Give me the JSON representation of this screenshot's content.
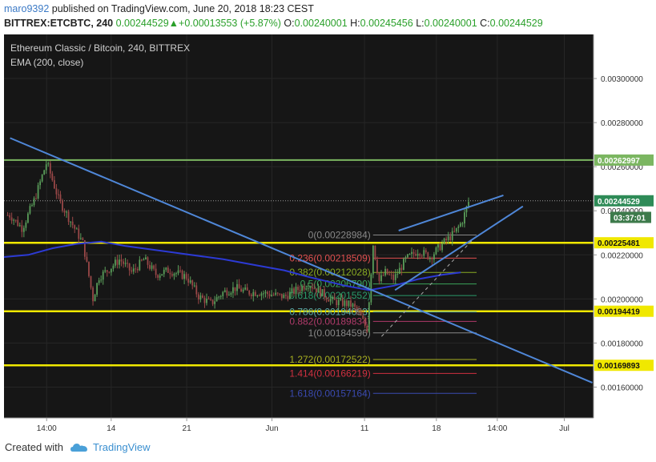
{
  "header": {
    "author": "maro9392",
    "published_text": "published on TradingView.com, June 20, 2018 18:23 CEST",
    "symbol": "BITTREX:ETCBTC, 240",
    "last": "0.00244529",
    "change_arrow": "▲",
    "change": "+0.00013553 (+5.87%)",
    "o_label": "O:",
    "o": "0.00240001",
    "h_label": "H:",
    "h": "0.00245456",
    "l_label": "L:",
    "l": "0.00240001",
    "c_label": "C:",
    "c": "0.00244529"
  },
  "legend": {
    "title": "Ethereum Classic / Bitcoin, 240, BITTREX",
    "indicator": "EMA (200, close)"
  },
  "footer": {
    "created_with": "Created with",
    "brand": "TradingView"
  },
  "colors": {
    "candle_up": "#5a9e5a",
    "candle_down": "#9a4848",
    "trendline": "#4f87d8",
    "ema": "#2c3ad4",
    "support": "#f0e800",
    "resistance": "#7bb661",
    "last_price": "#2e8b57",
    "countdown": "#3d7a4b"
  },
  "chart_data": {
    "type": "candlestick",
    "y_axis": {
      "min": 0.00146,
      "max": 0.0032,
      "ticks": [
        "0.00300000",
        "0.00280000",
        "0.00260000",
        "0.00240000",
        "0.00220000",
        "0.00200000",
        "0.00180000",
        "0.00160000"
      ],
      "tick_values": [
        0.003,
        0.0028,
        0.0026,
        0.0024,
        0.0022,
        0.002,
        0.0018,
        0.0016
      ]
    },
    "x_axis": {
      "min": 0,
      "max": 48.4,
      "ticks": [
        "14:00",
        "14",
        "21",
        "Jun",
        "11",
        "18",
        "14:00",
        "Jul"
      ],
      "tick_days": [
        3.5,
        8.8,
        15,
        22,
        29.6,
        35.5,
        40.5,
        46
      ]
    },
    "price_labels": [
      {
        "text": "0.00262997",
        "value": 0.00262997,
        "kind": "resistance"
      },
      {
        "text": "0.00244529",
        "value": 0.00244529,
        "kind": "last"
      },
      {
        "text": "03:37:01",
        "value": 0.00237,
        "kind": "countdown"
      },
      {
        "text": "0.00225481",
        "value": 0.00225481,
        "kind": "support"
      },
      {
        "text": "0.00194419",
        "value": 0.00194419,
        "kind": "support"
      },
      {
        "text": "0.00169893",
        "value": 0.00169893,
        "kind": "support"
      }
    ],
    "horizontal_lines": [
      {
        "value": 0.00262997,
        "color": "#7bb661",
        "width": 2
      },
      {
        "value": 0.00225481,
        "color": "#f0e800",
        "width": 2.5
      },
      {
        "value": 0.00194419,
        "color": "#f0e800",
        "width": 2.5
      },
      {
        "value": 0.00169893,
        "color": "#f0e800",
        "width": 2.5
      }
    ],
    "last_price": 0.00244529,
    "fibonacci": {
      "start_day": 30.3,
      "end_day": 38.8,
      "levels": [
        {
          "text": "0(0.00228984)",
          "value": 0.00228984,
          "color": "#888888"
        },
        {
          "text": "0.236(0.00218509)",
          "value": 0.00218509,
          "color": "#e05050"
        },
        {
          "text": "0.382(0.00212028)",
          "value": 0.00212028,
          "color": "#88aa22"
        },
        {
          "text": "0.5(0.00206790)",
          "value": 0.0020679,
          "color": "#3aa35a"
        },
        {
          "text": "0.618(0.00201552)",
          "value": 0.00201552,
          "color": "#2a9a6a"
        },
        {
          "text": "0.786(0.00194093)",
          "value": 0.00194093,
          "color": "#5aaaa8"
        },
        {
          "text": "0.882(0.00189834)",
          "value": 0.00189834,
          "color": "#b03a6a"
        },
        {
          "text": "1(0.00184596)",
          "value": 0.00184596,
          "color": "#888888"
        },
        {
          "text": "1.272(0.00172522)",
          "value": 0.00172522,
          "color": "#a8b020"
        },
        {
          "text": "1.414(0.00166219)",
          "value": 0.00166219,
          "color": "#d03040"
        },
        {
          "text": "1.618(0.00157164)",
          "value": 0.00157164,
          "color": "#3a4ab0"
        }
      ]
    },
    "trendlines": [
      {
        "from": [
          0.5,
          0.00273
        ],
        "to": [
          48.3,
          0.00162
        ],
        "color": "#4f87d8"
      },
      {
        "from": [
          32.4,
          0.00231
        ],
        "to": [
          41,
          0.00247
        ],
        "color": "#4f87d8"
      },
      {
        "from": [
          32.1,
          0.00204
        ],
        "to": [
          42.6,
          0.00242
        ],
        "color": "#4f87d8"
      }
    ],
    "dashed_lines": [
      {
        "from": [
          31,
          0.00183
        ],
        "to": [
          38.5,
          0.00227
        ]
      }
    ],
    "ema": {
      "x": [
        0,
        2,
        4,
        6,
        8,
        10,
        14,
        18,
        21,
        23,
        25,
        28,
        30,
        32,
        34,
        36,
        37.5
      ],
      "y": [
        0.00219,
        0.0022,
        0.00223,
        0.00225,
        0.00226,
        0.00224,
        0.00221,
        0.00218,
        0.00215,
        0.00213,
        0.0021,
        0.00206,
        0.00204,
        0.00206,
        0.00209,
        0.00211,
        0.00212
      ]
    },
    "price_path": {
      "x": [
        0.5,
        1.5,
        2.5,
        3.5,
        4.5,
        5.5,
        6.5,
        7.3,
        7.8,
        8.5,
        9.5,
        10.5,
        11.5,
        12.5,
        13.5,
        15,
        16,
        17,
        18,
        19,
        20,
        21,
        22,
        23,
        24,
        25,
        26,
        27,
        28,
        28.6,
        29.2,
        29.8,
        30.3,
        30.8,
        31.3,
        32,
        33,
        34,
        35,
        36,
        37,
        37.6,
        38.2
      ],
      "y": [
        0.00238,
        0.00232,
        0.00245,
        0.00262,
        0.00245,
        0.00235,
        0.00225,
        0.002,
        0.0021,
        0.00213,
        0.00218,
        0.00212,
        0.00218,
        0.00211,
        0.00213,
        0.0021,
        0.00201,
        0.00198,
        0.00203,
        0.00205,
        0.00203,
        0.00203,
        0.00202,
        0.00201,
        0.00204,
        0.00207,
        0.00203,
        0.00199,
        0.00198,
        0.00197,
        0.00193,
        0.00186,
        0.00225,
        0.00208,
        0.00212,
        0.00209,
        0.00218,
        0.00222,
        0.00219,
        0.00225,
        0.0023,
        0.00235,
        0.00245
      ]
    },
    "candle_days_start": 0.3,
    "candle_days_end": 38.3,
    "candle_step_days": 0.1667
  }
}
